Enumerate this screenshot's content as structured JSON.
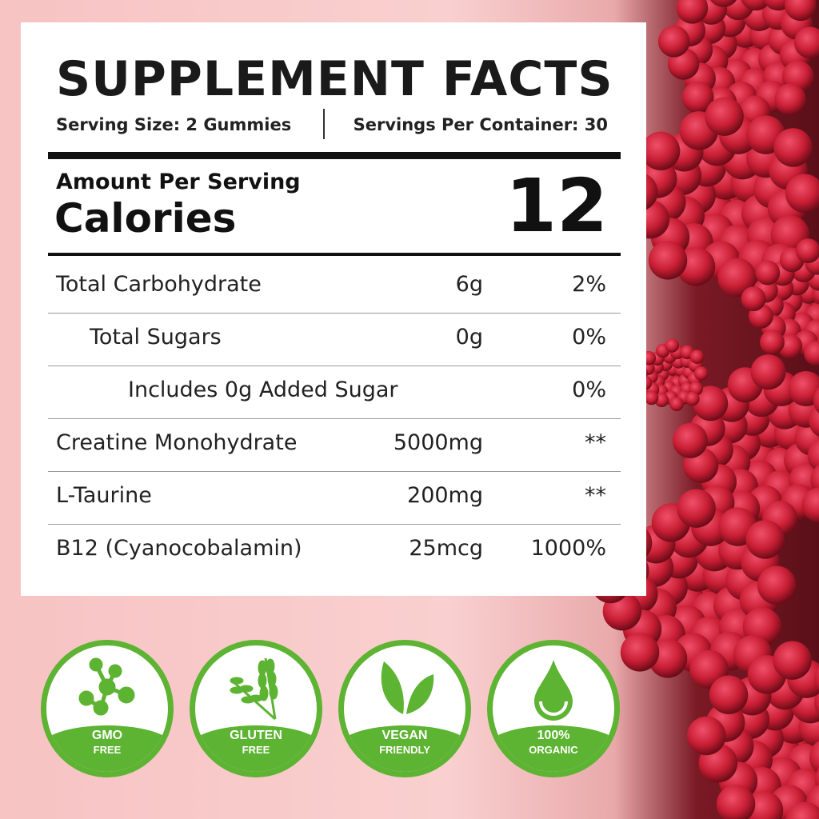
{
  "title": "SUPPLEMENT FACTS",
  "serving_size": "Serving Size: 2 Gummies",
  "servings_per_container": "Servings Per Container: 30",
  "amount_per_serving": "Amount Per Serving",
  "calories_label": "Calories",
  "calories_value": "12",
  "rows": [
    {
      "name": "Total Carbohydrate",
      "amount": "6g",
      "dv": "2%"
    },
    {
      "name": "Total Sugars",
      "amount": "0g",
      "dv": "0%"
    },
    {
      "name": "Includes 0g Added Sugar",
      "amount": "",
      "dv": "0%"
    },
    {
      "name": "Creatine Monohydrate",
      "amount": "5000mg",
      "dv": "**"
    },
    {
      "name": "L-Taurine",
      "amount": "200mg",
      "dv": "**"
    },
    {
      "name": "B12 (Cyanocobalamin)",
      "amount": "25mcg",
      "dv": "1000%"
    }
  ],
  "badges": [
    {
      "line1": "GMO",
      "line2": "FREE",
      "icon": "molecule-icon"
    },
    {
      "line1": "GLUTEN",
      "line2": "FREE",
      "icon": "wheat-icon"
    },
    {
      "line1": "VEGAN",
      "line2": "FRIENDLY",
      "icon": "leaf-icon"
    },
    {
      "line1": "100%",
      "line2": "ORGANIC",
      "icon": "droplet-icon"
    }
  ],
  "colors": {
    "badge_green": "#5db332",
    "background_pink": "#f7c3c3",
    "berry_red": "#c81e34"
  }
}
